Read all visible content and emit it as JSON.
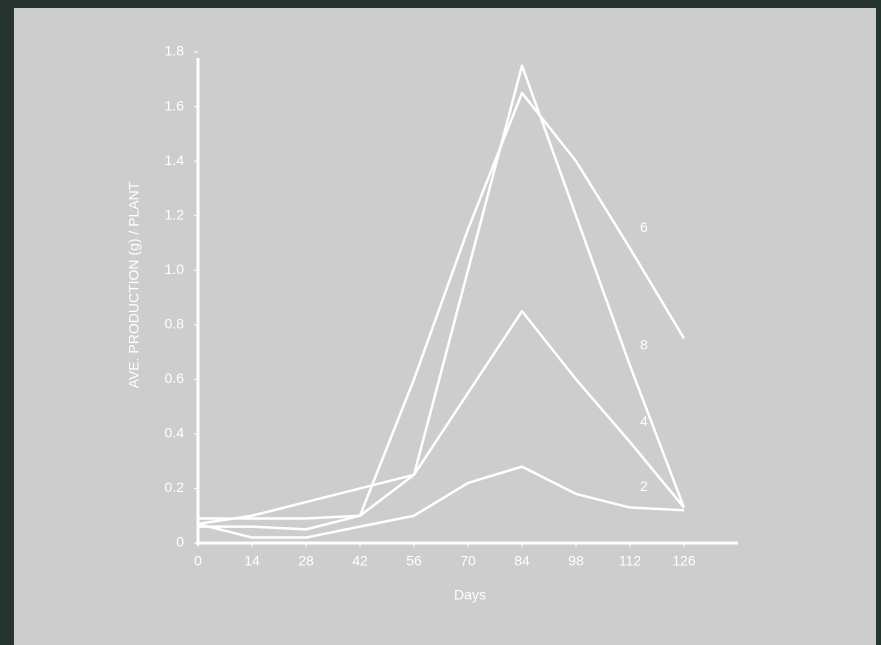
{
  "chart_data": {
    "type": "line",
    "xlabel": "Days",
    "ylabel": "AVE. PRODUCTION (g) / PLANT",
    "x": [
      0,
      14,
      28,
      42,
      56,
      70,
      84,
      98,
      112,
      126
    ],
    "series": [
      {
        "name": "2",
        "color": "#ffffff",
        "values": [
          0.07,
          0.02,
          0.02,
          0.06,
          0.1,
          0.22,
          0.28,
          0.18,
          0.13,
          0.12
        ]
      },
      {
        "name": "4",
        "color": "#ffffff",
        "values": [
          0.07,
          0.1,
          0.15,
          0.2,
          0.25,
          0.55,
          0.85,
          0.6,
          0.37,
          0.13
        ]
      },
      {
        "name": "6",
        "color": "#ffffff",
        "values": [
          0.06,
          0.06,
          0.05,
          0.1,
          0.6,
          1.15,
          1.65,
          1.4,
          1.08,
          0.75
        ]
      },
      {
        "name": "8",
        "color": "#ffffff",
        "values": [
          0.09,
          0.09,
          0.09,
          0.1,
          0.25,
          1.0,
          1.75,
          1.2,
          0.65,
          0.13
        ]
      }
    ],
    "xlim": [
      0,
      140
    ],
    "xticks": [
      0,
      14,
      28,
      42,
      56,
      70,
      84,
      98,
      112,
      126
    ],
    "ylim": [
      0,
      1.8
    ],
    "yticks": [
      0,
      0.2,
      0.4,
      0.6,
      0.8,
      {
        "value": 1,
        "label": "1.0"
      },
      1.2,
      1.4,
      1.6,
      1.8
    ]
  }
}
